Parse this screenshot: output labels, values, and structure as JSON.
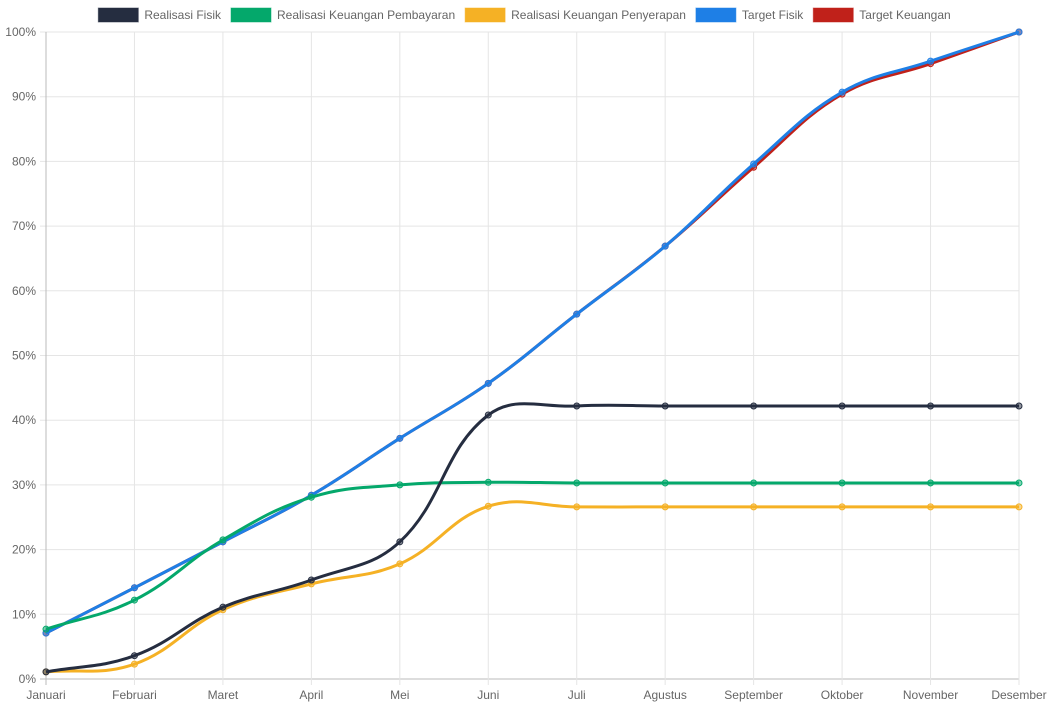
{
  "chart_data": {
    "type": "line",
    "title": "",
    "xlabel": "",
    "ylabel": "",
    "ylim": [
      0,
      100
    ],
    "y_ticks": [
      "0%",
      "10%",
      "20%",
      "30%",
      "40%",
      "50%",
      "60%",
      "70%",
      "80%",
      "90%",
      "100%"
    ],
    "grid": true,
    "legend_position": "top",
    "categories": [
      "Januari",
      "Februari",
      "Maret",
      "April",
      "Mei",
      "Juni",
      "Juli",
      "Agustus",
      "September",
      "Oktober",
      "November",
      "Desember"
    ],
    "series": [
      {
        "name": "Realisasi Fisik",
        "color": "#252d40",
        "values": [
          1.1,
          3.6,
          11.1,
          15.3,
          21.2,
          40.8,
          42.2,
          42.2,
          42.2,
          42.2,
          42.2,
          42.2
        ]
      },
      {
        "name": "Realisasi Keuangan Pembayaran",
        "color": "#04a86b",
        "values": [
          7.7,
          12.2,
          21.5,
          28.1,
          30.0,
          30.4,
          30.3,
          30.3,
          30.3,
          30.3,
          30.3,
          30.3
        ]
      },
      {
        "name": "Realisasi Keuangan Penyerapan",
        "color": "#f5b125",
        "values": [
          1.1,
          2.3,
          10.7,
          14.7,
          17.8,
          26.7,
          26.6,
          26.6,
          26.6,
          26.6,
          26.6,
          26.6
        ]
      },
      {
        "name": "Target Fisik",
        "color": "#1e7fe6",
        "values": [
          7.1,
          14.1,
          21.2,
          28.4,
          37.2,
          45.7,
          56.4,
          66.9,
          79.6,
          90.7,
          95.5,
          100
        ]
      },
      {
        "name": "Target Keuangan",
        "color": "#c0211a",
        "values": [
          7.1,
          14.1,
          21.2,
          28.4,
          37.2,
          45.7,
          56.4,
          66.9,
          79.1,
          90.4,
          95.1,
          100
        ]
      }
    ]
  }
}
